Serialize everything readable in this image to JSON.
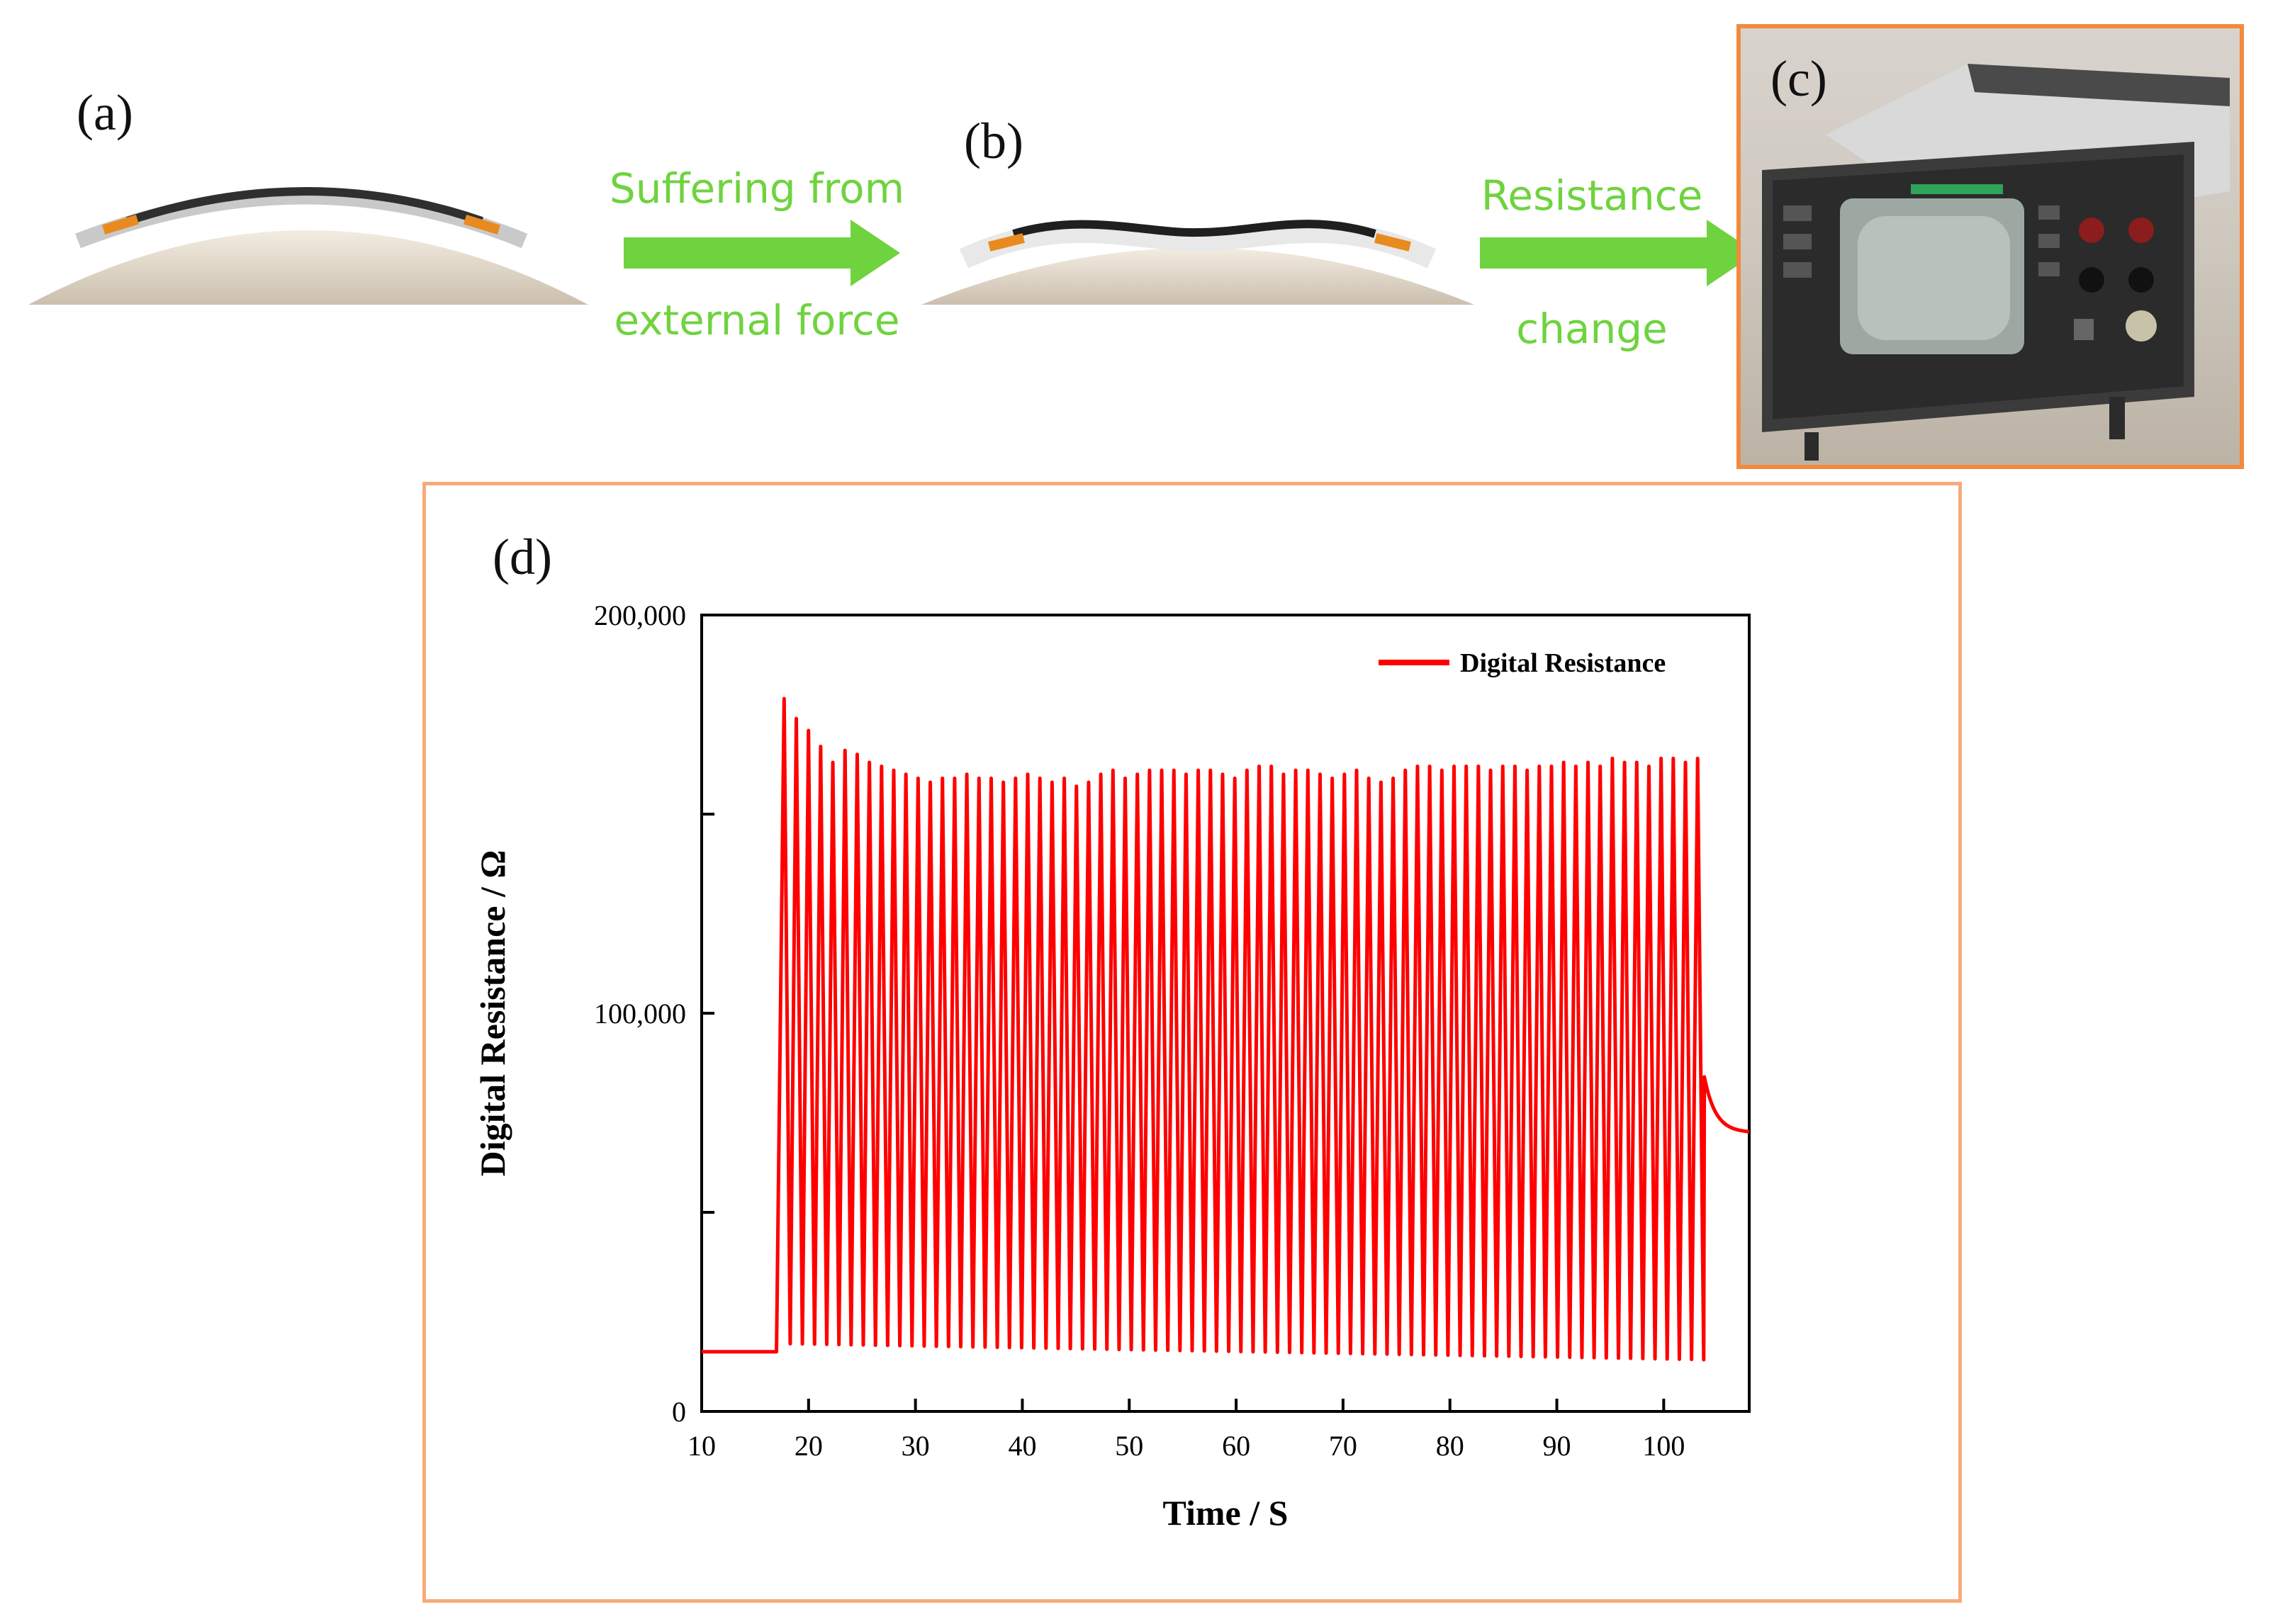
{
  "figure": {
    "panel_labels": {
      "a": "(a)",
      "b": "(b)",
      "c": "(c)",
      "d": "(d)"
    },
    "flow": {
      "step1_line1": "Suffering from",
      "step1_line2": "external force",
      "step2_line1": "Resistance",
      "step2_line2": "change",
      "arrow_color": "#6fd33f"
    },
    "frame_colors": {
      "device": "#f28a3e",
      "chart": "#f6ab79"
    },
    "chart_data": {
      "type": "line",
      "xlabel": "Time / S",
      "ylabel": "Digital Resistance / Ω",
      "xlim": [
        10,
        108
      ],
      "ylim": [
        0,
        200000
      ],
      "x_ticks": [
        10,
        20,
        30,
        40,
        50,
        60,
        70,
        80,
        90,
        100
      ],
      "y_tick_labels": [
        "0",
        "100,000",
        "200,000"
      ],
      "y_ticks": [
        0,
        50000,
        100000,
        150000,
        200000
      ],
      "legend": {
        "position": "top-right",
        "label": "Digital Resistance"
      },
      "series": [
        {
          "name": "Digital Resistance",
          "color": "#ff0000",
          "baseline": {
            "x_start": 10,
            "x_end": 17,
            "value": 15000
          },
          "oscillation": {
            "x_start": 17.2,
            "x_end": 103.8,
            "cycles": 76,
            "peaks": [
              179000,
              174000,
              171000,
              167000,
              163000,
              166000,
              165000,
              163000,
              162000,
              161000,
              160000,
              159000,
              158000,
              159000,
              159000,
              160000,
              159000,
              159000,
              158000,
              159000,
              160000,
              159000,
              158000,
              159000,
              157000,
              158000,
              160000,
              161000,
              159000,
              160000,
              161000,
              161000,
              161000,
              160000,
              161000,
              161000,
              160000,
              159000,
              161000,
              162000,
              162000,
              160000,
              161000,
              161000,
              160000,
              159000,
              160000,
              161000,
              159000,
              158000,
              159000,
              161000,
              162000,
              162000,
              161000,
              162000,
              162000,
              162000,
              161000,
              162000,
              162000,
              161000,
              162000,
              162000,
              163000,
              162000,
              163000,
              162000,
              164000,
              163000,
              163000,
              162000,
              164000,
              164000,
              163000,
              164000
            ],
            "troughs_start": 17000,
            "troughs_end": 13000
          },
          "tail": {
            "x_start": 103.8,
            "x_end": 108,
            "value_start": 84000,
            "value_end": 70000
          }
        }
      ]
    }
  }
}
